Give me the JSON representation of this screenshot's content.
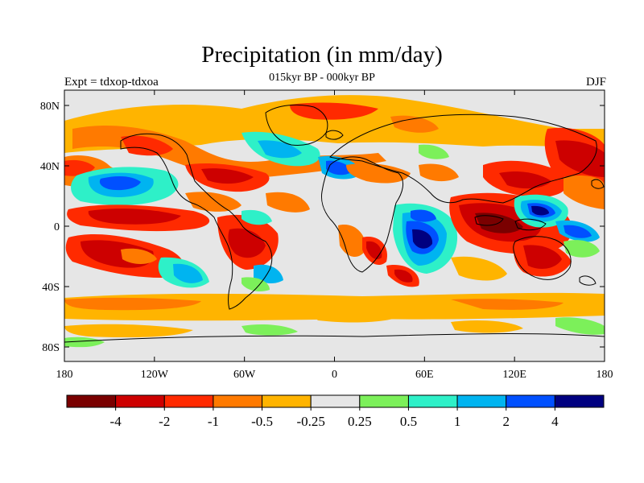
{
  "title": "Precipitation (in mm/day)",
  "subtitle": "015kyr BP - 000kyr BP",
  "left_label": "Expt = tdxop-tdxoa",
  "right_label": "DJF",
  "y_ticks": [
    "80N",
    "40N",
    "0",
    "40S",
    "80S"
  ],
  "x_ticks": [
    "180",
    "120W",
    "60W",
    "0",
    "60E",
    "120E",
    "180"
  ],
  "colorbar": {
    "colors": [
      "#7a0000",
      "#cd0000",
      "#ff2a00",
      "#ff7a00",
      "#ffb400",
      "#e6e6e6",
      "#7cf05a",
      "#2ef0c8",
      "#00b4f0",
      "#0050ff",
      "#000080"
    ],
    "labels": [
      "-4",
      "-2",
      "-1",
      "-0.5",
      "-0.25",
      "0.25",
      "0.5",
      "1",
      "2",
      "4"
    ]
  },
  "map": {
    "background_color": "#e6e6e6",
    "coastline_color": "#000000"
  }
}
